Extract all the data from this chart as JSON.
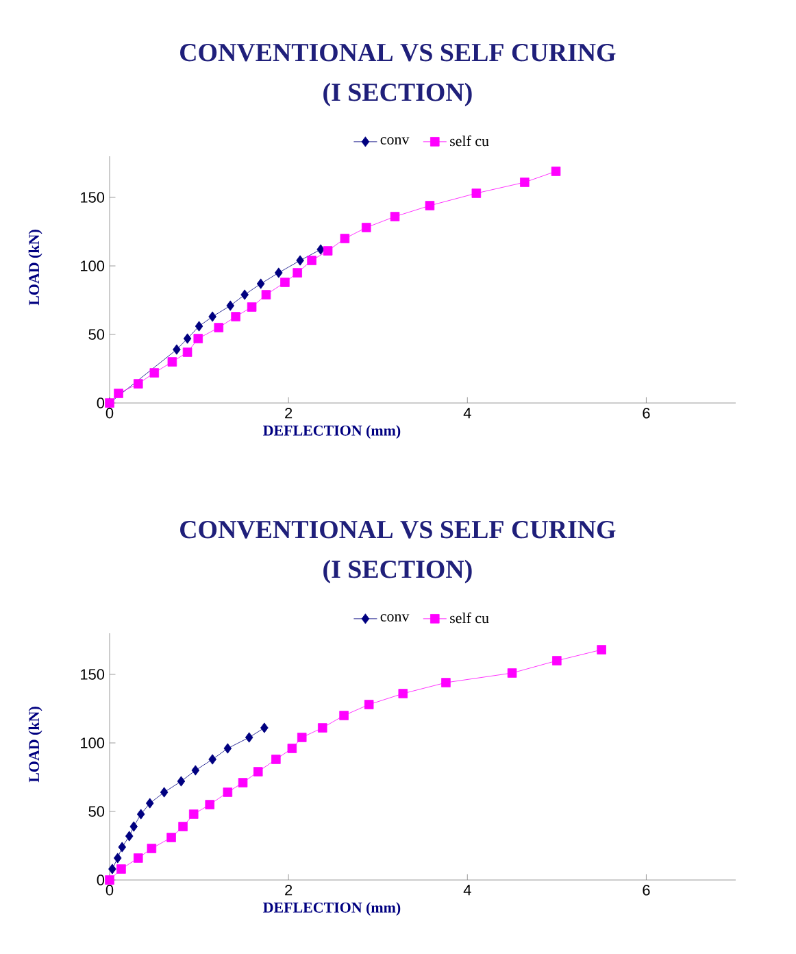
{
  "chart_data": [
    {
      "type": "line",
      "title": "CONVENTIONAL VS SELF CURING",
      "subtitle": "(I SECTION)",
      "xlabel": "DEFLECTION (mm)",
      "ylabel": "LOAD (kN)",
      "xlim": [
        0,
        7
      ],
      "ylim": [
        0,
        180
      ],
      "xticks": [
        0,
        2,
        4,
        6
      ],
      "yticks": [
        0,
        50,
        100,
        150
      ],
      "grid": false,
      "legend": "top",
      "line_style": "solid",
      "series": [
        {
          "name": "conv",
          "color": "#000080",
          "marker": "diamond",
          "x": [
            0,
            0.1,
            0.3,
            0.5,
            0.75,
            0.87,
            1.0,
            1.15,
            1.35,
            1.51,
            1.69,
            1.89,
            2.13,
            2.36
          ],
          "values": [
            0,
            null,
            null,
            null,
            39,
            47,
            56,
            63,
            71,
            79,
            87,
            95,
            104,
            112
          ]
        },
        {
          "name": "self cu",
          "color": "#ff00ff",
          "marker": "square",
          "x": [
            0,
            0.1,
            0.32,
            0.5,
            0.7,
            0.87,
            0.99,
            1.22,
            1.41,
            1.59,
            1.75,
            1.96,
            2.1,
            2.26,
            2.44,
            2.63,
            2.87,
            3.19,
            3.58,
            4.1,
            4.64,
            4.99
          ],
          "values": [
            0,
            7,
            14,
            22,
            30,
            37,
            47,
            55,
            63,
            70,
            79,
            88,
            95,
            104,
            111,
            120,
            128,
            136,
            144,
            153,
            161,
            169
          ]
        }
      ]
    },
    {
      "type": "line",
      "title": "CONVENTIONAL VS SELF CURING",
      "subtitle": "(I SECTION)",
      "xlabel": "DEFLECTION (mm)",
      "ylabel": "LOAD (kN)",
      "xlim": [
        0,
        7
      ],
      "ylim": [
        0,
        180
      ],
      "xticks": [
        0,
        2,
        4,
        6
      ],
      "yticks": [
        0,
        50,
        100,
        150
      ],
      "grid": false,
      "legend": "top",
      "line_style": "solid",
      "series": [
        {
          "name": "conv",
          "color": "#000080",
          "marker": "diamond",
          "x": [
            0.03,
            0.09,
            0.14,
            0.22,
            0.27,
            0.35,
            0.45,
            0.61,
            0.8,
            0.96,
            1.15,
            1.32,
            1.56,
            1.73
          ],
          "values": [
            8,
            16,
            24,
            32,
            39,
            48,
            56,
            64,
            72,
            80,
            88,
            96,
            104,
            111
          ]
        },
        {
          "name": "self cu",
          "color": "#ff00ff",
          "marker": "square",
          "x": [
            0,
            0.13,
            0.32,
            0.47,
            0.69,
            0.82,
            0.94,
            1.12,
            1.32,
            1.49,
            1.66,
            1.86,
            2.04,
            2.15,
            2.38,
            2.62,
            2.9,
            3.28,
            3.76,
            4.5,
            5.0,
            5.5
          ],
          "values": [
            0,
            8,
            16,
            23,
            31,
            39,
            48,
            55,
            64,
            71,
            79,
            88,
            96,
            104,
            111,
            120,
            128,
            136,
            144,
            151,
            160,
            168
          ]
        }
      ]
    }
  ]
}
